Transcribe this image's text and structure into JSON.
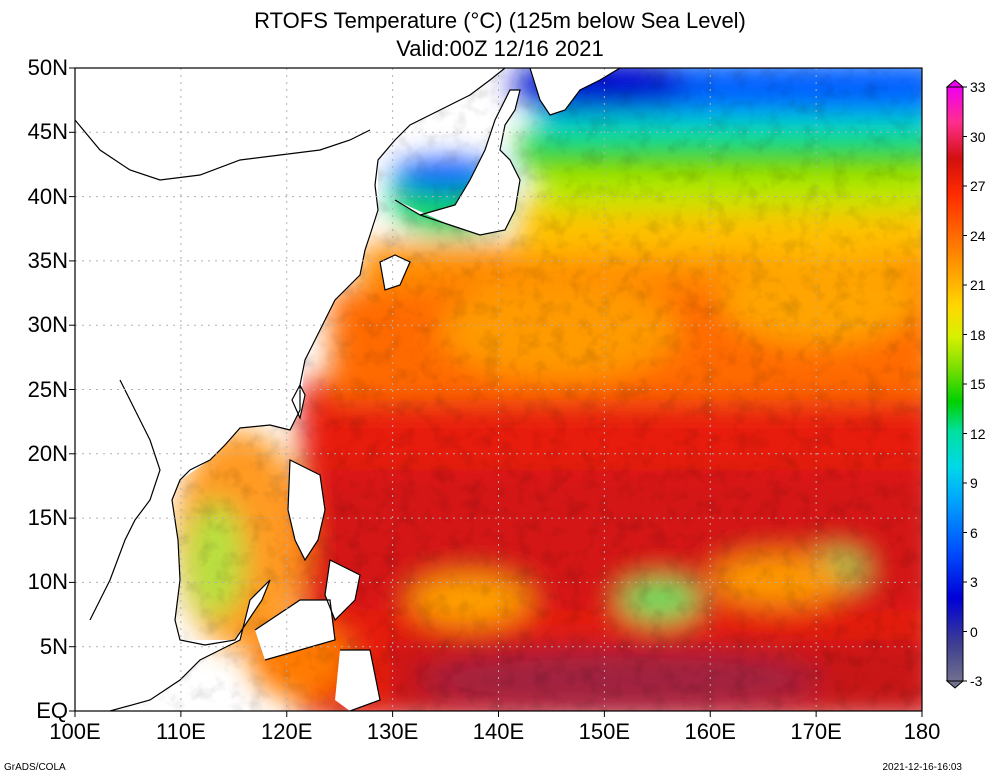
{
  "title": {
    "line1": "RTOFS Temperature (°C) (125m below Sea Level)",
    "line2": "Valid:00Z 12/16 2021"
  },
  "axes": {
    "lat_labels": [
      "50N",
      "45N",
      "40N",
      "35N",
      "30N",
      "25N",
      "20N",
      "15N",
      "10N",
      "5N",
      "EQ"
    ],
    "lat_values": [
      50,
      45,
      40,
      35,
      30,
      25,
      20,
      15,
      10,
      5,
      0
    ],
    "lon_labels": [
      "100E",
      "110E",
      "120E",
      "130E",
      "140E",
      "150E",
      "160E",
      "170E",
      "180"
    ],
    "lon_values": [
      100,
      110,
      120,
      130,
      140,
      150,
      160,
      170,
      180
    ],
    "lat_range": [
      0,
      50
    ],
    "lon_range": [
      100,
      180
    ],
    "grid": true
  },
  "colorbar": {
    "labels": [
      "33",
      "30",
      "27",
      "24",
      "21",
      "18",
      "15",
      "12",
      "9",
      "6",
      "3",
      "0",
      "-3"
    ],
    "values": [
      33,
      30,
      27,
      24,
      21,
      18,
      15,
      12,
      9,
      6,
      3,
      0,
      -3
    ],
    "colors": [
      "#c000c0",
      "#f000f0",
      "#ff2e8c",
      "#d21010",
      "#ff2b00",
      "#ff6a00",
      "#ffa000",
      "#ffd800",
      "#d8f000",
      "#80e000",
      "#00d000",
      "#00e0a0",
      "#00d8e8",
      "#00a0ff",
      "#0050ff",
      "#0000d8",
      "#404090",
      "#707090"
    ]
  },
  "footer": {
    "credit": "GrADS/COLA",
    "timestamp": "2021-12-16-16:03"
  }
}
